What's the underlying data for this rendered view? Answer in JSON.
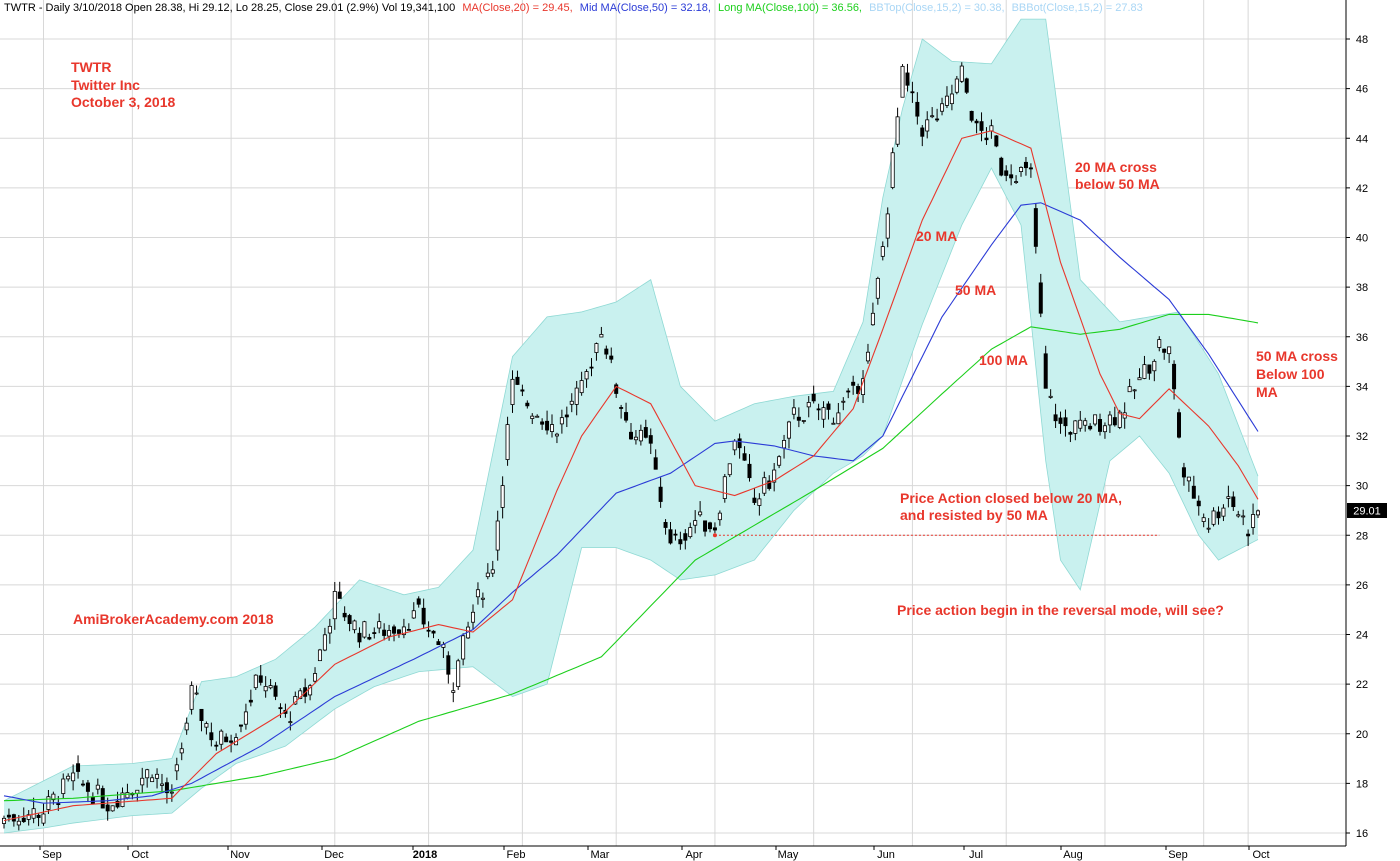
{
  "header": {
    "lead": "TWTR - Daily 3/10/2018 Open 28.38, Hi 29.12, Lo 28.25, Close 29.01 (2.9%) Vol 19,341,100",
    "ma20": "MA(Close,20) = 29.45,",
    "ma50": "Mid MA(Close,50) = 32.18,",
    "ma100": "Long MA(Close,100) = 36.56,",
    "bbtop": "BBTop(Close,15,2) = 30.38,",
    "bbbot": "BBBot(Close,15,2) = 27.83"
  },
  "colors": {
    "background": "#ffffff",
    "grid": "#d8d8d8",
    "band_fill": "#c9f1ef",
    "band_edge": "#8fd9d4",
    "candle": "#000000",
    "ma20": "#e8372c",
    "ma50": "#2b3bd6",
    "ma100": "#1ccf1c",
    "annotation": "#e8372c",
    "support_line": "#e8372c",
    "bbtop_text": "#a9d6f5",
    "bbbot_text": "#a9d6f5"
  },
  "chart_data": {
    "type": "candlestick",
    "ticker": "TWTR",
    "ylim": [
      15.5,
      49
    ],
    "yticks": [
      16,
      18,
      20,
      22,
      24,
      26,
      28,
      30,
      32,
      34,
      36,
      38,
      40,
      42,
      44,
      46,
      48
    ],
    "last_price_label": "29.01",
    "x_tick_labels": [
      "Sep",
      "Oct",
      "Nov",
      "Dec",
      "2018",
      "Feb",
      "Mar",
      "Apr",
      "May",
      "Jun",
      "Jul",
      "Aug",
      "Sep",
      "Oct"
    ],
    "price_path": [
      [
        0,
        16.6
      ],
      [
        8,
        16.9
      ],
      [
        14,
        18.2
      ],
      [
        21,
        17.2
      ],
      [
        26,
        17.9
      ],
      [
        30,
        18.6
      ],
      [
        34,
        17.3
      ],
      [
        38,
        21.6
      ],
      [
        43,
        19.6
      ],
      [
        47,
        20.2
      ],
      [
        52,
        22.4
      ],
      [
        57,
        20.6
      ],
      [
        62,
        21.9
      ],
      [
        67,
        25.4
      ],
      [
        72,
        24.1
      ],
      [
        78,
        24.2
      ],
      [
        84,
        24.8
      ],
      [
        88,
        23.7
      ],
      [
        91,
        22.1
      ],
      [
        95,
        24.9
      ],
      [
        99,
        26.9
      ],
      [
        103,
        34.0
      ],
      [
        107,
        33.1
      ],
      [
        112,
        32.3
      ],
      [
        117,
        33.8
      ],
      [
        121,
        36.4
      ],
      [
        124,
        33.9
      ],
      [
        127,
        32.2
      ],
      [
        131,
        31.5
      ],
      [
        135,
        27.5
      ],
      [
        140,
        28.6
      ],
      [
        144,
        28.4
      ],
      [
        148,
        32.0
      ],
      [
        152,
        29.3
      ],
      [
        156,
        30.5
      ],
      [
        160,
        32.8
      ],
      [
        164,
        33.1
      ],
      [
        168,
        32.9
      ],
      [
        172,
        33.6
      ],
      [
        175,
        35.2
      ],
      [
        178,
        39.6
      ],
      [
        182,
        46.5
      ],
      [
        186,
        44.4
      ],
      [
        190,
        45.0
      ],
      [
        194,
        46.6
      ],
      [
        197,
        44.3
      ],
      [
        200,
        44.1
      ],
      [
        202,
        42.8
      ],
      [
        205,
        42.7
      ],
      [
        208,
        42.5
      ],
      [
        211,
        33.8
      ],
      [
        214,
        32.4
      ],
      [
        218,
        32.3
      ],
      [
        222,
        32.6
      ],
      [
        226,
        32.9
      ],
      [
        230,
        34.2
      ],
      [
        234,
        35.7
      ],
      [
        236,
        35.4
      ],
      [
        239,
        30.4
      ],
      [
        244,
        28.5
      ],
      [
        248,
        29.6
      ],
      [
        252,
        28.3
      ],
      [
        254,
        29.01
      ]
    ],
    "ma20": [
      [
        0,
        16.5
      ],
      [
        14,
        17.1
      ],
      [
        34,
        17.4
      ],
      [
        43,
        19.2
      ],
      [
        57,
        20.9
      ],
      [
        67,
        22.8
      ],
      [
        78,
        23.9
      ],
      [
        88,
        24.4
      ],
      [
        95,
        24.1
      ],
      [
        103,
        25.4
      ],
      [
        112,
        29.8
      ],
      [
        117,
        32.0
      ],
      [
        124,
        34.0
      ],
      [
        131,
        33.3
      ],
      [
        140,
        30.0
      ],
      [
        148,
        29.6
      ],
      [
        156,
        30.2
      ],
      [
        164,
        31.2
      ],
      [
        172,
        33.1
      ],
      [
        178,
        36.3
      ],
      [
        186,
        40.7
      ],
      [
        194,
        44.0
      ],
      [
        200,
        44.3
      ],
      [
        208,
        43.6
      ],
      [
        214,
        39.0
      ],
      [
        222,
        34.5
      ],
      [
        226,
        32.9
      ],
      [
        230,
        32.7
      ],
      [
        236,
        33.9
      ],
      [
        244,
        32.4
      ],
      [
        250,
        30.8
      ],
      [
        254,
        29.45
      ]
    ],
    "ma50": [
      [
        0,
        17.5
      ],
      [
        8,
        17.2
      ],
      [
        21,
        17.3
      ],
      [
        30,
        17.5
      ],
      [
        38,
        18.0
      ],
      [
        52,
        19.5
      ],
      [
        67,
        21.5
      ],
      [
        84,
        23.1
      ],
      [
        95,
        24.2
      ],
      [
        103,
        25.7
      ],
      [
        112,
        27.2
      ],
      [
        124,
        29.7
      ],
      [
        135,
        30.5
      ],
      [
        144,
        31.7
      ],
      [
        148,
        31.8
      ],
      [
        156,
        31.6
      ],
      [
        164,
        31.2
      ],
      [
        172,
        31.0
      ],
      [
        178,
        32.0
      ],
      [
        190,
        36.8
      ],
      [
        200,
        39.7
      ],
      [
        206,
        41.3
      ],
      [
        210,
        41.4
      ],
      [
        218,
        40.7
      ],
      [
        226,
        39.2
      ],
      [
        236,
        37.5
      ],
      [
        244,
        35.3
      ],
      [
        254,
        32.18
      ]
    ],
    "ma100": [
      [
        0,
        17.3
      ],
      [
        14,
        17.4
      ],
      [
        34,
        17.7
      ],
      [
        52,
        18.3
      ],
      [
        67,
        19.0
      ],
      [
        84,
        20.5
      ],
      [
        103,
        21.6
      ],
      [
        121,
        23.1
      ],
      [
        140,
        27.0
      ],
      [
        152,
        28.4
      ],
      [
        164,
        29.8
      ],
      [
        178,
        31.5
      ],
      [
        190,
        33.7
      ],
      [
        200,
        35.5
      ],
      [
        208,
        36.4
      ],
      [
        218,
        36.1
      ],
      [
        226,
        36.3
      ],
      [
        236,
        36.9
      ],
      [
        244,
        36.9
      ],
      [
        254,
        36.56
      ]
    ],
    "bb_upper": [
      [
        0,
        17.3
      ],
      [
        14,
        18.7
      ],
      [
        26,
        18.8
      ],
      [
        34,
        19.0
      ],
      [
        40,
        22.1
      ],
      [
        47,
        22.3
      ],
      [
        55,
        23.0
      ],
      [
        63,
        24.3
      ],
      [
        72,
        26.2
      ],
      [
        81,
        25.6
      ],
      [
        88,
        25.9
      ],
      [
        95,
        27.4
      ],
      [
        103,
        35.2
      ],
      [
        110,
        36.8
      ],
      [
        117,
        37.0
      ],
      [
        124,
        37.4
      ],
      [
        131,
        38.3
      ],
      [
        137,
        34.0
      ],
      [
        144,
        32.6
      ],
      [
        152,
        33.3
      ],
      [
        160,
        33.6
      ],
      [
        168,
        33.8
      ],
      [
        174,
        36.6
      ],
      [
        178,
        41.6
      ],
      [
        182,
        45.2
      ],
      [
        186,
        48.0
      ],
      [
        192,
        47.1
      ],
      [
        200,
        47.0
      ],
      [
        206,
        48.8
      ],
      [
        211,
        48.8
      ],
      [
        218,
        38.3
      ],
      [
        226,
        36.6
      ],
      [
        232,
        36.8
      ],
      [
        238,
        37.0
      ],
      [
        246,
        34.5
      ],
      [
        254,
        30.38
      ]
    ],
    "bb_lower": [
      [
        0,
        16.0
      ],
      [
        8,
        16.2
      ],
      [
        14,
        16.4
      ],
      [
        26,
        16.7
      ],
      [
        34,
        16.8
      ],
      [
        40,
        17.8
      ],
      [
        47,
        18.8
      ],
      [
        57,
        19.5
      ],
      [
        67,
        21.0
      ],
      [
        75,
        21.9
      ],
      [
        84,
        22.5
      ],
      [
        95,
        22.7
      ],
      [
        103,
        21.5
      ],
      [
        110,
        22.0
      ],
      [
        117,
        27.5
      ],
      [
        124,
        27.5
      ],
      [
        131,
        27.0
      ],
      [
        137,
        26.2
      ],
      [
        144,
        26.4
      ],
      [
        152,
        27.0
      ],
      [
        160,
        29.0
      ],
      [
        168,
        30.5
      ],
      [
        174,
        31.2
      ],
      [
        178,
        32.0
      ],
      [
        186,
        36.5
      ],
      [
        194,
        40.5
      ],
      [
        200,
        42.8
      ],
      [
        206,
        40.5
      ],
      [
        211,
        31.0
      ],
      [
        214,
        27.0
      ],
      [
        218,
        25.8
      ],
      [
        224,
        31.0
      ],
      [
        230,
        32.0
      ],
      [
        236,
        30.5
      ],
      [
        242,
        28.0
      ],
      [
        246,
        27.0
      ],
      [
        254,
        27.83
      ]
    ],
    "support_level": 28.0,
    "support_range": [
      144,
      234
    ],
    "support_marker_index": 144
  },
  "annotations": {
    "ticker": "TWTR",
    "company": "Twitter Inc",
    "date": "October 3, 2018",
    "website": "AmiBrokerAcademy.com  2018",
    "ma20_label": "20 MA",
    "ma50_label": "50 MA",
    "ma100_label": "100 MA",
    "cross1_line1": "20 MA cross",
    "cross1_line2": "below 50 MA",
    "cross2_line1": "50 MA cross",
    "cross2_line2": "Below 100",
    "cross2_line3": "MA",
    "pa_line1": "Price Action closed below 20 MA,",
    "pa_line2": "and resisted by 50 MA",
    "reversal": "Price action begin in the reversal mode, will see?"
  }
}
